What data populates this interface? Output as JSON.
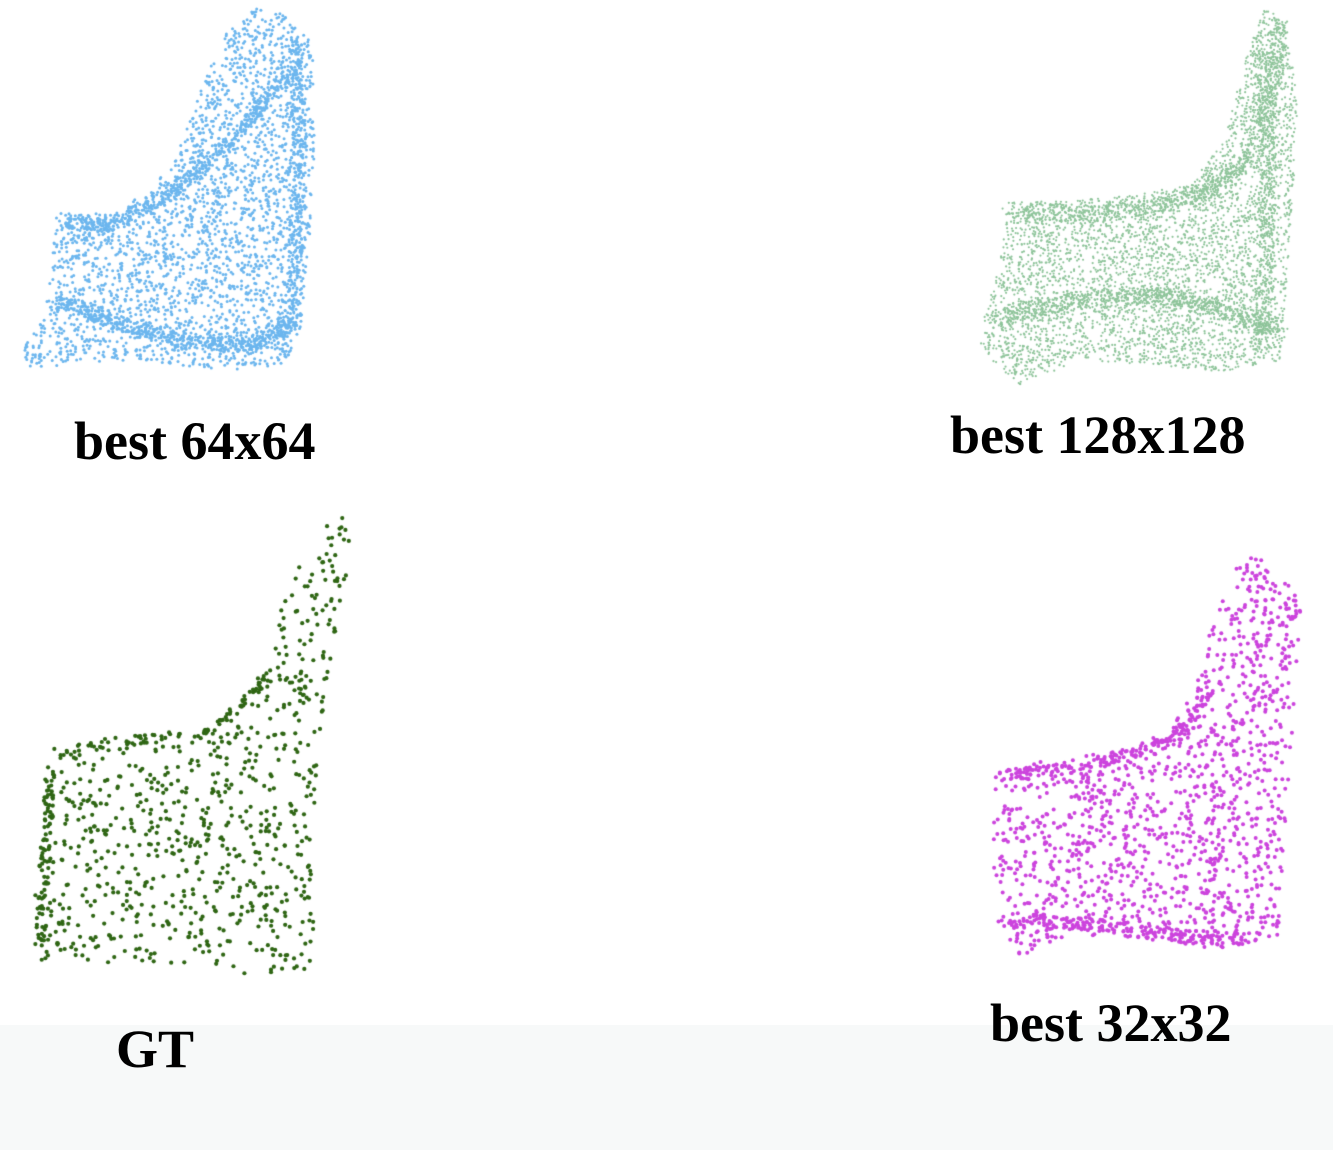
{
  "panels": [
    {
      "id": "best-64",
      "caption": "best 64x64",
      "color": "#6cb6ee",
      "point_density": "dense"
    },
    {
      "id": "best-128",
      "caption": "best 128x128",
      "color": "#8ec49a",
      "point_density": "very-dense"
    },
    {
      "id": "gt",
      "caption": "GT",
      "color": "#2f6614",
      "point_density": "sparse"
    },
    {
      "id": "best-32",
      "caption": "best 32x32",
      "color": "#cc44dd",
      "point_density": "medium"
    }
  ],
  "background": "#ffffff",
  "footer_band_color": "#f7f9f9"
}
